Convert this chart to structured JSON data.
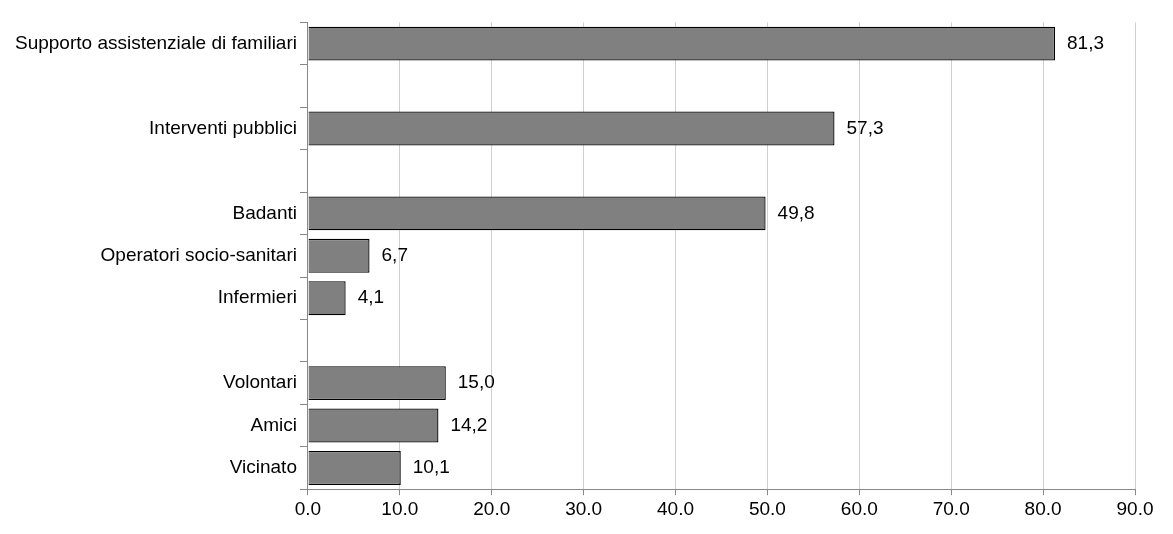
{
  "chart_data": {
    "type": "bar",
    "orientation": "horizontal",
    "categories": [
      "Supporto assistenziale di familiari",
      null,
      "Interventi pubblici",
      null,
      "Badanti",
      "Operatori socio-sanitari",
      "Infermieri",
      null,
      "Volontari",
      "Amici",
      "Vicinato"
    ],
    "values": [
      81.3,
      null,
      57.3,
      null,
      49.8,
      6.7,
      4.1,
      null,
      15.0,
      14.2,
      10.1
    ],
    "value_labels": [
      "81,3",
      null,
      "57,3",
      null,
      "49,8",
      "6,7",
      "4,1",
      null,
      "15,0",
      "14,2",
      "10,1"
    ],
    "color": "#808080",
    "xlim": [
      0,
      90
    ],
    "xticks": [
      {
        "value": 0,
        "label": "0.0"
      },
      {
        "value": 10,
        "label": "10.0"
      },
      {
        "value": 20,
        "label": "20.0"
      },
      {
        "value": 30,
        "label": "30.0"
      },
      {
        "value": 40,
        "label": "40.0"
      },
      {
        "value": 50,
        "label": "50.0"
      },
      {
        "value": 60,
        "label": "60.0"
      },
      {
        "value": 70,
        "label": "70.0"
      },
      {
        "value": 80,
        "label": "80.0"
      },
      {
        "value": 90,
        "label": "90.0"
      }
    ],
    "grid": "x",
    "legend": false
  }
}
